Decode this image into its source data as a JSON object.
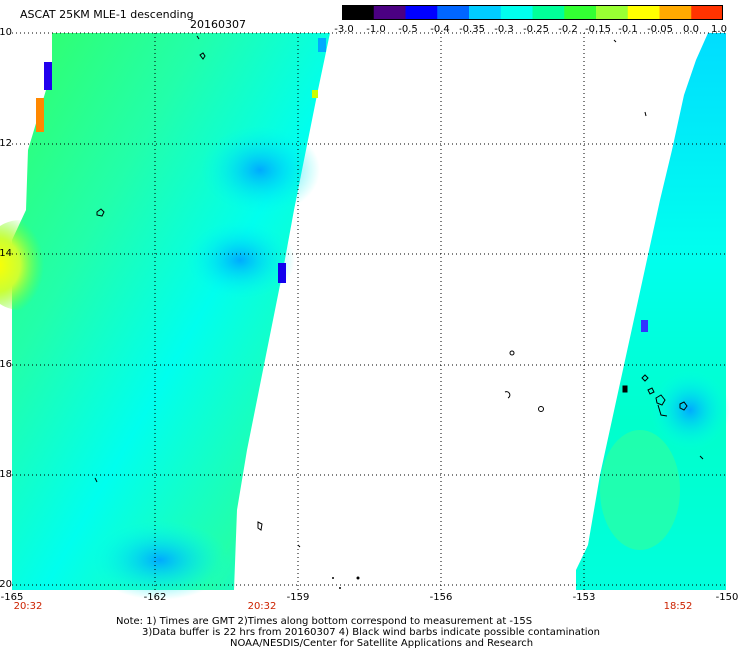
{
  "header": {
    "title": "ASCAT 25KM MLE-1 descending",
    "date": "20160307"
  },
  "colorbar": {
    "labels": [
      "-3.0",
      "-1.0",
      "-0.5",
      "-0.4",
      "-0.35",
      "-0.3",
      "-0.25",
      "-0.2",
      "-0.15",
      "-0.1",
      "-0.05",
      "0.0",
      "1.0"
    ],
    "colors": [
      "#000000",
      "#4b0082",
      "#0000ff",
      "#0066ff",
      "#00ccff",
      "#00ffee",
      "#00ff99",
      "#33ff33",
      "#99ff33",
      "#ffff00",
      "#ffaa00",
      "#ff3300"
    ]
  },
  "axes": {
    "y_labels": [
      "-10",
      "-12",
      "-14",
      "-16",
      "-18",
      "-20"
    ],
    "x_labels": [
      "-165",
      "-162",
      "-159",
      "-156",
      "-153",
      "-150"
    ]
  },
  "times": [
    "20:32",
    "20:32",
    "18:52"
  ],
  "notes": {
    "line1": "Note: 1) Times are GMT 2)Times along bottom correspond to measurement at -15S",
    "line2": "3)Data buffer is 22 hrs from 20160307 4) Black wind barbs indicate possible contamination",
    "line3": "NOAA/NESDIS/Center for Satellite Applications and Research"
  }
}
